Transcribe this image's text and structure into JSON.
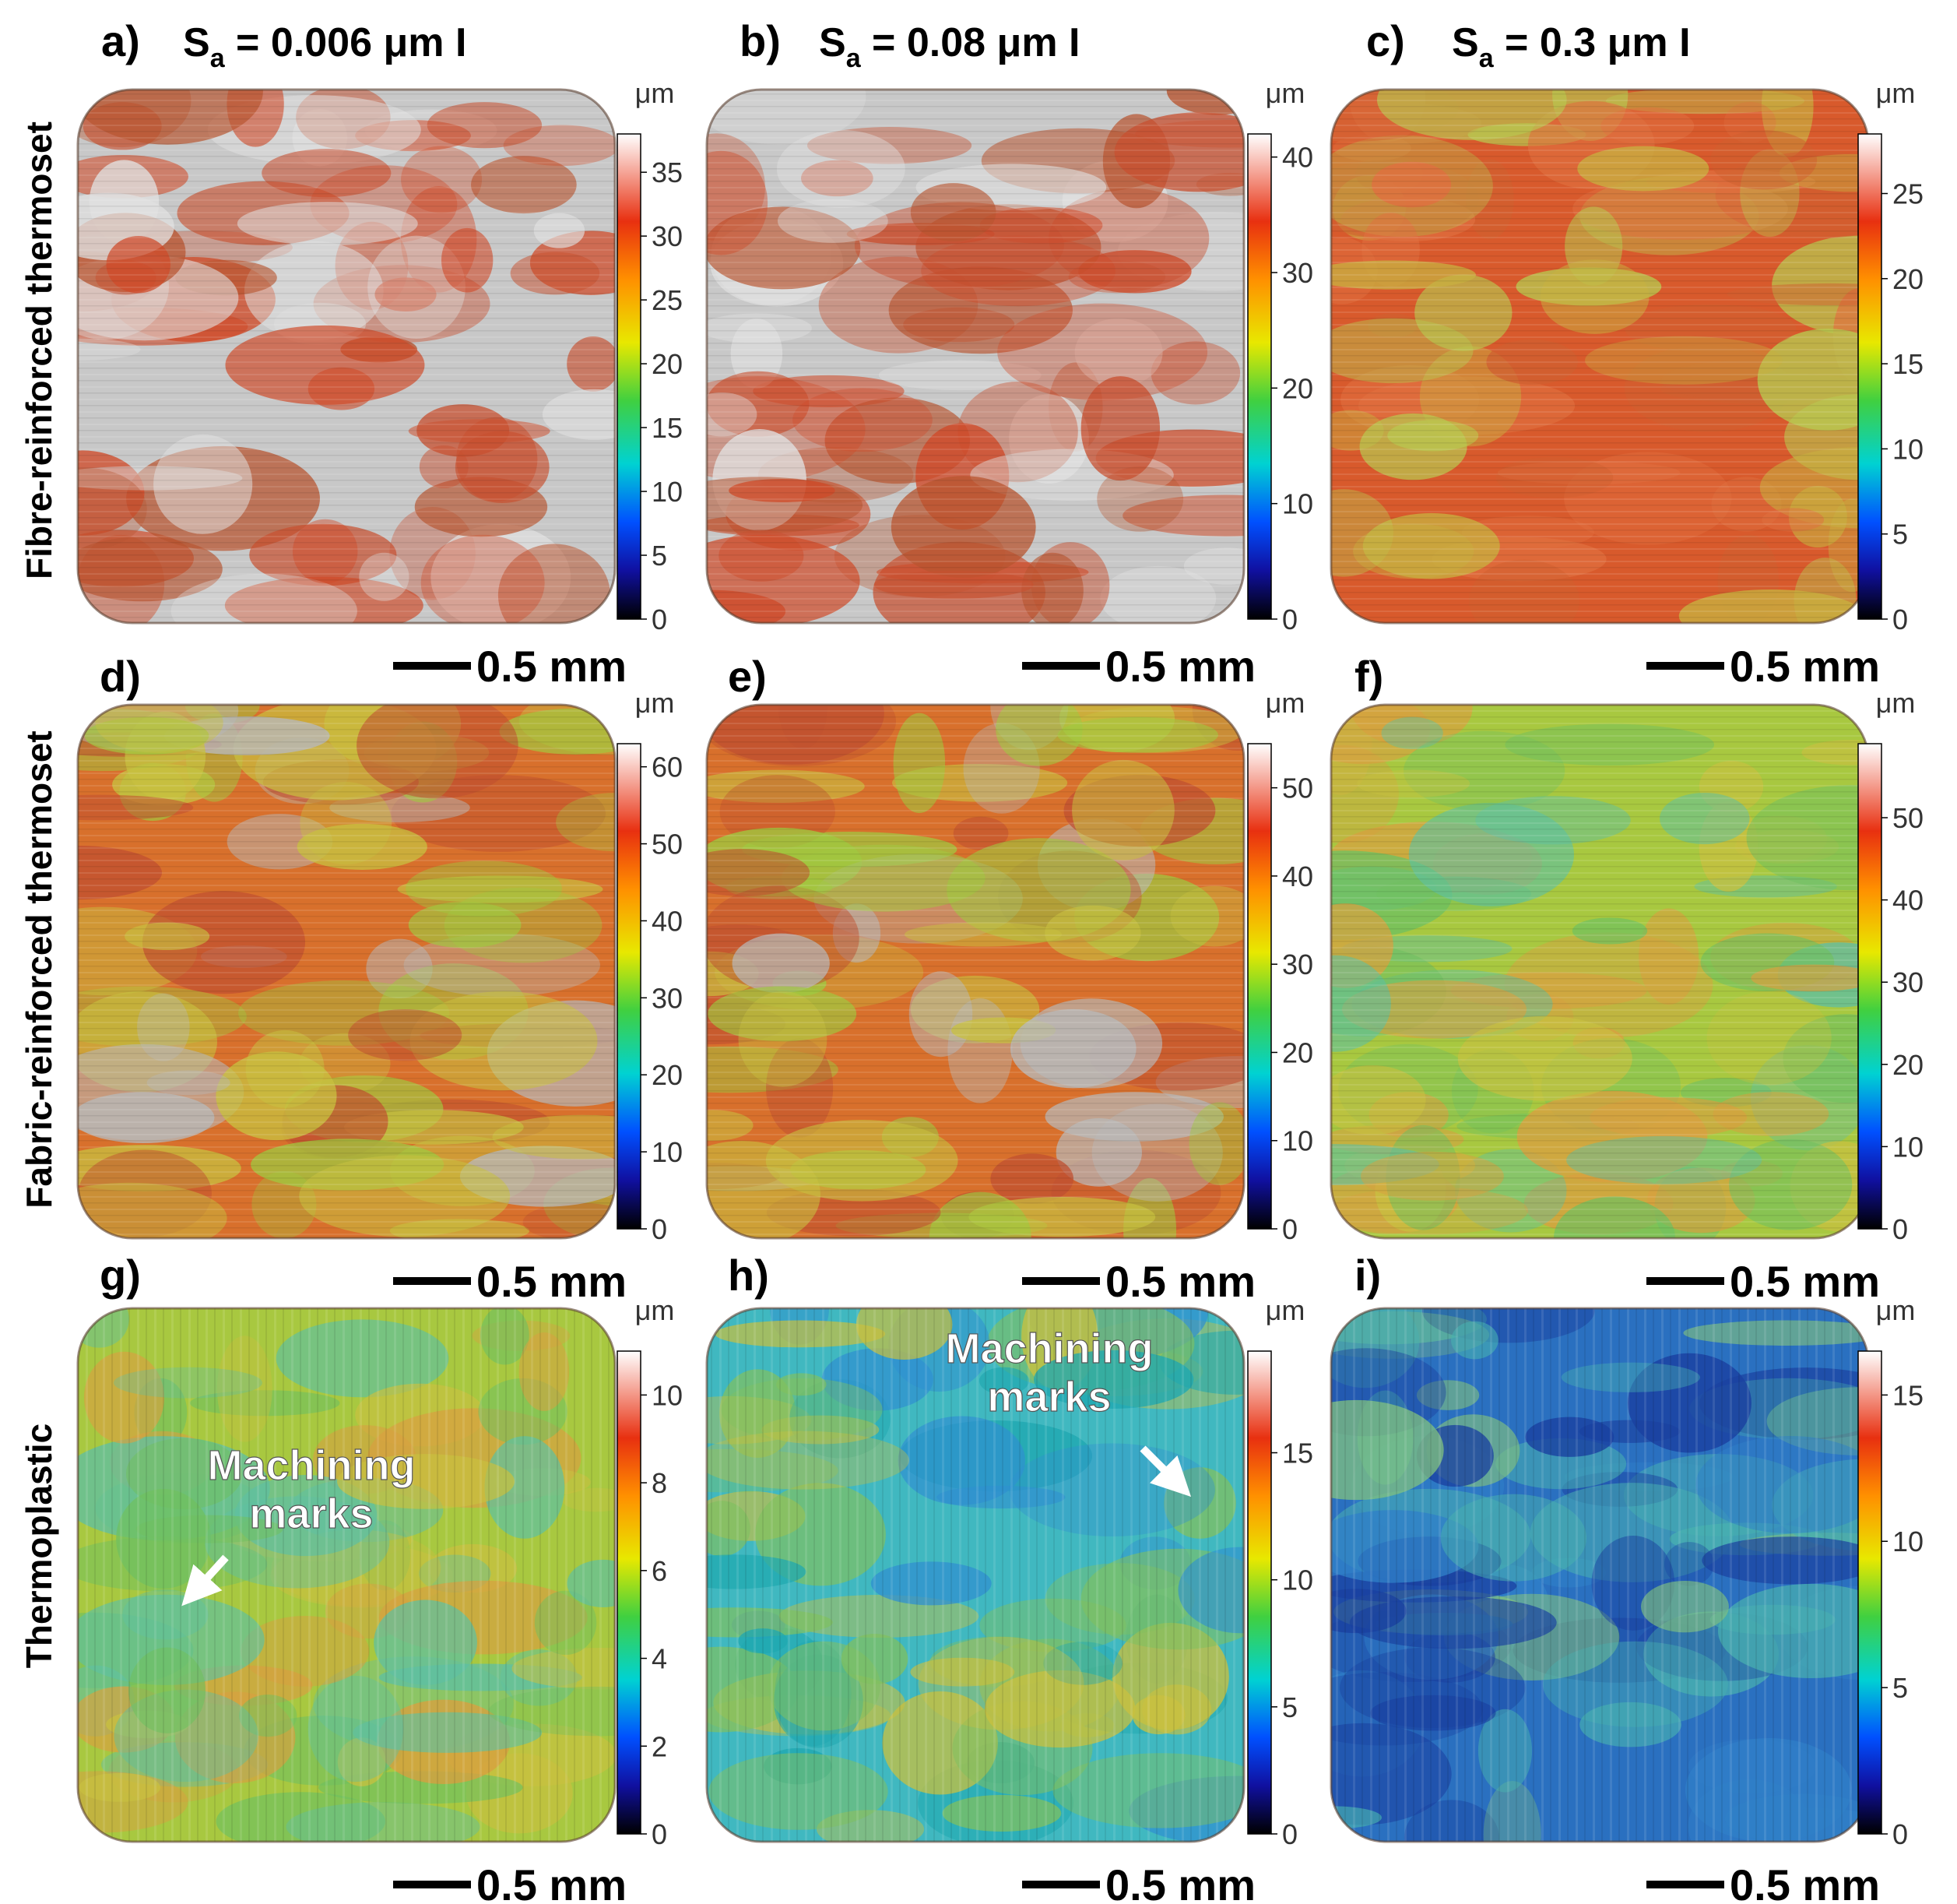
{
  "rows": [
    {
      "label": "Fibre-reinforced thermoset"
    },
    {
      "label": "Fabric-reinforced thermoset"
    },
    {
      "label": "Thermoplastic"
    }
  ],
  "columns": [
    {
      "letter": "a)",
      "sa_prefix": "S",
      "sa_sub": "a",
      "sa_value": " = 0.006 μm I"
    },
    {
      "letter": "b)",
      "sa_prefix": "S",
      "sa_sub": "a",
      "sa_value": " = 0.08 μm I"
    },
    {
      "letter": "c)",
      "sa_prefix": "S",
      "sa_sub": "a",
      "sa_value": " = 0.3 μm I"
    }
  ],
  "panels": [
    {
      "id": "a",
      "letter": "a)",
      "unit": "μm",
      "ticks": [
        "0",
        "5",
        "10",
        "15",
        "20",
        "25",
        "30",
        "35"
      ],
      "max": 38,
      "scalebar": "0.5 mm",
      "palette": "red"
    },
    {
      "id": "b",
      "letter": "b)",
      "unit": "μm",
      "ticks": [
        "0",
        "10",
        "20",
        "30",
        "40"
      ],
      "max": 42,
      "scalebar": "0.5 mm",
      "palette": "red"
    },
    {
      "id": "c",
      "letter": "c)",
      "unit": "μm",
      "ticks": [
        "0",
        "5",
        "10",
        "15",
        "20",
        "25"
      ],
      "max": 28.5,
      "scalebar": "0.5 mm",
      "palette": "redyellow"
    },
    {
      "id": "d",
      "letter": "d)",
      "unit": "μm",
      "ticks": [
        "0",
        "10",
        "20",
        "30",
        "40",
        "50",
        "60"
      ],
      "max": 63,
      "scalebar": "0.5 mm",
      "palette": "mixed"
    },
    {
      "id": "e",
      "letter": "e)",
      "unit": "μm",
      "ticks": [
        "0",
        "10",
        "20",
        "30",
        "40",
        "50"
      ],
      "max": 55,
      "scalebar": "0.5 mm",
      "palette": "mixed"
    },
    {
      "id": "f",
      "letter": "f)",
      "unit": "μm",
      "ticks": [
        "0",
        "10",
        "20",
        "30",
        "40",
        "50"
      ],
      "max": 59,
      "scalebar": "0.5 mm",
      "palette": "yellowgreen"
    },
    {
      "id": "g",
      "letter": "g)",
      "unit": "μm",
      "ticks": [
        "0",
        "2",
        "4",
        "6",
        "8",
        "10"
      ],
      "max": 11,
      "scalebar": "0.5 mm",
      "palette": "yellowgreen",
      "annotation": [
        "Machining",
        "marks"
      ]
    },
    {
      "id": "h",
      "letter": "h)",
      "unit": "μm",
      "ticks": [
        "0",
        "5",
        "10",
        "15"
      ],
      "max": 19,
      "scalebar": "0.5 mm",
      "palette": "cyan",
      "annotation": [
        "Machining",
        "marks"
      ]
    },
    {
      "id": "i",
      "letter": "i)",
      "unit": "μm",
      "ticks": [
        "0",
        "5",
        "10",
        "15"
      ],
      "max": 16.5,
      "scalebar": "0.5 mm",
      "palette": "blue"
    }
  ],
  "colors": {
    "text": "#000000",
    "annotation_text": "#ffffff",
    "colormap": [
      "#000000",
      "#1010a0",
      "#0050ff",
      "#00d2d2",
      "#40d040",
      "#e8e800",
      "#ff9000",
      "#e83010",
      "#ffffff"
    ]
  }
}
